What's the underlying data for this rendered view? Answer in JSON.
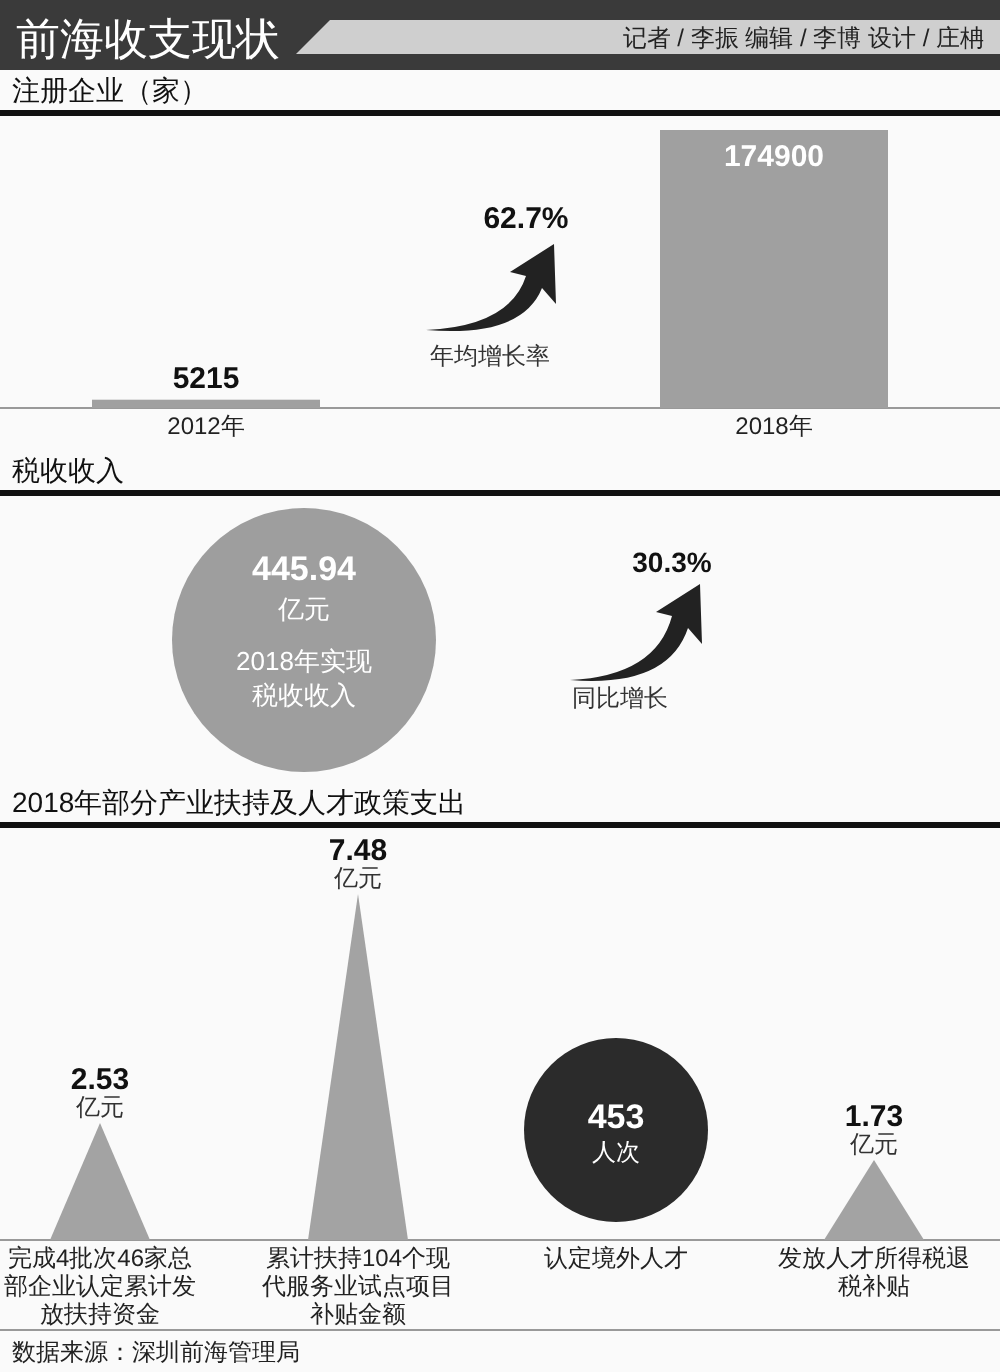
{
  "chart_data": [
    {
      "type": "other",
      "title": "前海收支现状",
      "subtitle": "记者 / 李振  编辑 / 李博  设计 / 庄柟"
    },
    {
      "type": "bar",
      "title": "注册企业（家）",
      "categories": [
        "2012年",
        "2018年"
      ],
      "values": [
        5215,
        174900
      ],
      "color": "#a0a0a0",
      "data_labels": true,
      "annotations": [
        "62.7%",
        "年均增长率"
      ]
    },
    {
      "type": "other",
      "title": "税收收入",
      "color": "#9e9e9e",
      "annotations": [
        "445.94",
        "亿元",
        "2018年实现",
        "税收收入",
        "30.3%",
        "同比增长"
      ]
    },
    {
      "type": "other",
      "title": "2018年部分产业扶持及人才政策支出",
      "categories": [
        "完成4批次46家总部企业认定累计发放扶持资金",
        "累计扶持104个现代服务业试点项目补贴金额",
        "认定境外人才",
        "发放人才所得税退税补贴"
      ],
      "series": [
        {
          "type": "bar",
          "color": "#a3a3a3",
          "values": [
            2.53,
            7.48,
            null,
            1.73
          ]
        },
        {
          "type": "other",
          "color": "#2b2b2b",
          "values": [
            null,
            null,
            453,
            null
          ]
        }
      ],
      "data_labels": true,
      "annotations": [
        "亿元",
        "亿元",
        "人次",
        "亿元",
        "数据来源：深圳前海管理局"
      ]
    }
  ]
}
